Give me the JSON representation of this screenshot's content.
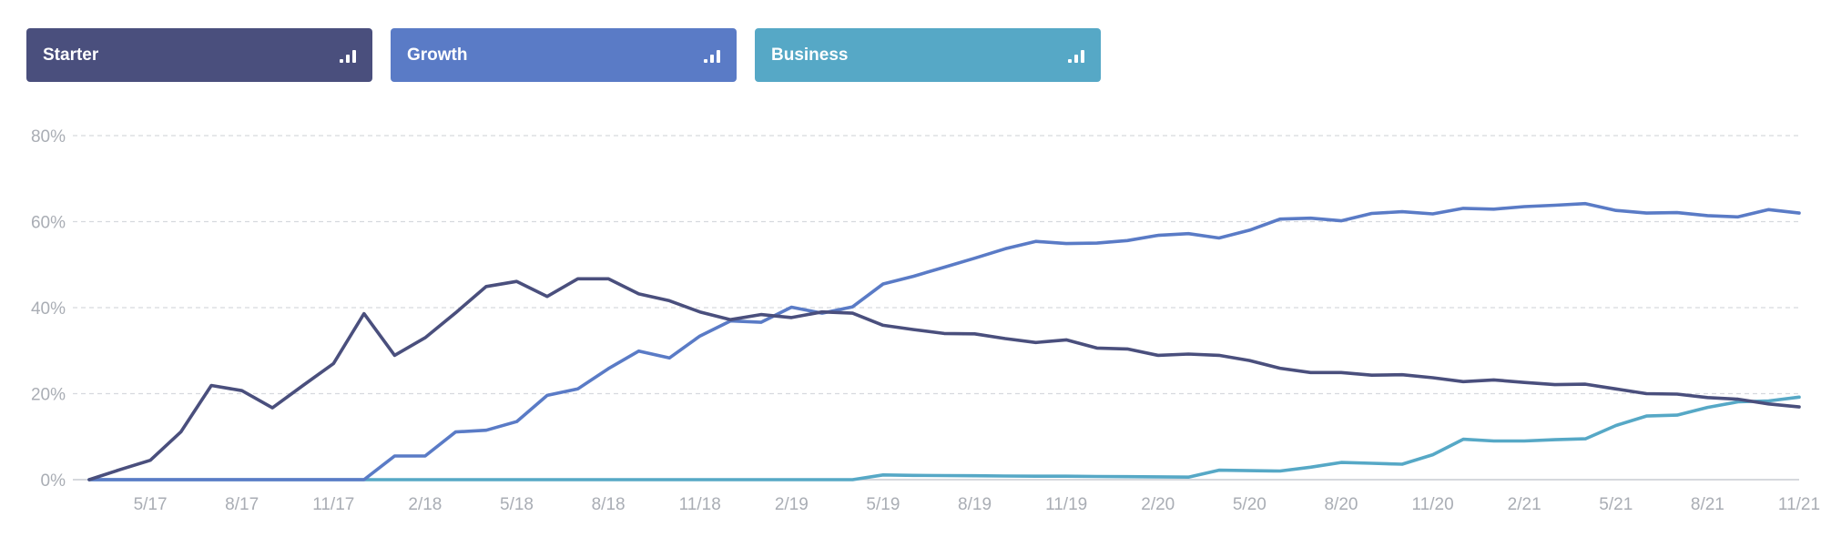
{
  "legend": [
    {
      "label": "Starter",
      "color": "#4a4f7d",
      "icon": "bar-chart-icon"
    },
    {
      "label": "Growth",
      "color": "#5a7bc6",
      "icon": "bar-chart-icon"
    },
    {
      "label": "Business",
      "color": "#56a8c6",
      "icon": "bar-chart-icon"
    }
  ],
  "chart_data": {
    "type": "line",
    "y_ticks": [
      "0%",
      "20%",
      "40%",
      "60%",
      "80%"
    ],
    "ylim": [
      0,
      80
    ],
    "x_ticks": [
      "5/17",
      "8/17",
      "11/17",
      "2/18",
      "5/18",
      "8/18",
      "11/18",
      "2/19",
      "5/19",
      "8/19",
      "11/19",
      "2/20",
      "5/20",
      "8/20",
      "11/20",
      "2/21",
      "5/21",
      "8/21",
      "11/21"
    ],
    "x": [
      "3/17",
      "4/17",
      "5/17",
      "6/17",
      "7/17",
      "8/17",
      "9/17",
      "10/17",
      "11/17",
      "12/17",
      "1/18",
      "2/18",
      "3/18",
      "4/18",
      "5/18",
      "6/18",
      "7/18",
      "8/18",
      "9/18",
      "10/18",
      "11/18",
      "12/18",
      "1/19",
      "2/19",
      "3/19",
      "4/19",
      "5/19",
      "6/19",
      "7/19",
      "8/19",
      "9/19",
      "10/19",
      "11/19",
      "12/19",
      "1/20",
      "2/20",
      "3/20",
      "4/20",
      "5/20",
      "6/20",
      "7/20",
      "8/20",
      "9/20",
      "10/20",
      "11/20",
      "12/20",
      "1/21",
      "2/21",
      "3/21",
      "4/21",
      "5/21",
      "6/21",
      "7/21",
      "8/21",
      "9/21",
      "10/21",
      "11/21"
    ],
    "grid": true,
    "series": [
      {
        "name": "Starter",
        "color": "#4a4f7d",
        "values": [
          0,
          2.3,
          4.5,
          11.1,
          21.9,
          20.7,
          16.7,
          21.9,
          27.0,
          38.6,
          28.9,
          33.0,
          38.8,
          44.9,
          46.1,
          42.6,
          46.7,
          46.7,
          43.2,
          41.6,
          39.0,
          37.2,
          38.4,
          37.7,
          39.0,
          38.7,
          35.9,
          34.9,
          34.0,
          33.9,
          32.8,
          31.9,
          32.5,
          30.6,
          30.4,
          28.9,
          29.2,
          28.9,
          27.7,
          25.9,
          24.9,
          24.9,
          24.3,
          24.4,
          23.7,
          22.8,
          23.2,
          22.6,
          22.1,
          22.2,
          21.1,
          20.0,
          19.9,
          19.1,
          18.7,
          17.6,
          16.9
        ]
      },
      {
        "name": "Growth",
        "color": "#5a7bc6",
        "values": [
          0,
          0,
          0,
          0,
          0,
          0,
          0,
          0,
          0,
          0,
          5.5,
          5.5,
          11.1,
          11.5,
          13.5,
          19.6,
          21.1,
          25.8,
          29.9,
          28.3,
          33.4,
          36.9,
          36.6,
          40.1,
          38.7,
          40.2,
          45.5,
          47.3,
          49.4,
          51.5,
          53.7,
          55.4,
          54.9,
          55.0,
          55.6,
          56.8,
          57.2,
          56.2,
          58.0,
          60.6,
          60.8,
          60.2,
          61.9,
          62.3,
          61.8,
          63.1,
          62.9,
          63.5,
          63.8,
          64.2,
          62.6,
          62.0,
          62.1,
          61.4,
          61.1,
          62.8,
          62.0
        ]
      },
      {
        "name": "Business",
        "color": "#56a8c6",
        "values": [
          0,
          0,
          0,
          0,
          0,
          0,
          0,
          0,
          0,
          0,
          0,
          0,
          0,
          0,
          0,
          0,
          0,
          0,
          0,
          0,
          0,
          0,
          0,
          0,
          0,
          0,
          1.1,
          1.0,
          0.95,
          0.9,
          0.85,
          0.8,
          0.8,
          0.75,
          0.7,
          0.65,
          0.6,
          2.2,
          2.1,
          2.0,
          2.9,
          4.0,
          3.8,
          3.6,
          5.8,
          9.4,
          9.0,
          9.0,
          9.3,
          9.5,
          12.6,
          14.8,
          15.0,
          16.8,
          18.1,
          18.3,
          19.2
        ]
      }
    ]
  }
}
